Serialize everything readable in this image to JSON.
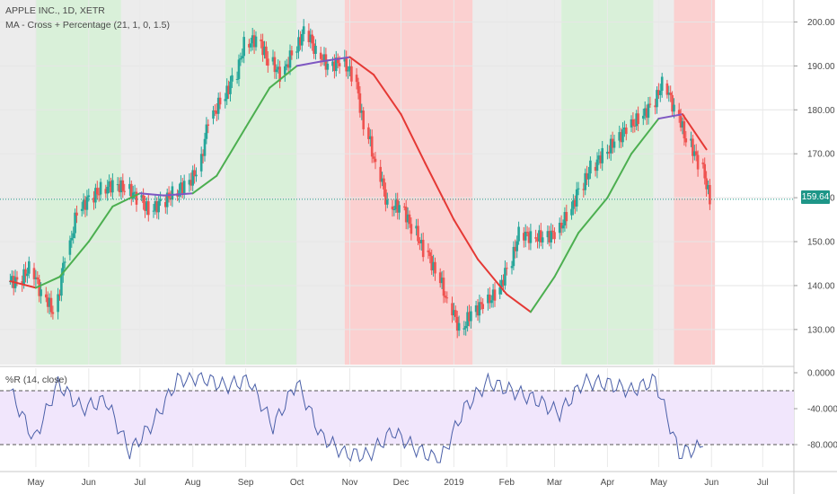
{
  "header": {
    "symbol": "APPLE INC., 1D, XETR",
    "indicator": "MA - Cross + Percentage (21, 1, 0, 1.5)",
    "oscillator": "%R (14, close)"
  },
  "last_price_label": "159.64",
  "colors": {
    "up_candle": "#26a69a",
    "down_candle": "#ef5350",
    "ma_up": "#4caf50",
    "ma_down": "#e53935",
    "ma_flat": "#7e57c2",
    "zone_green": "#d9f0d9",
    "zone_red": "#fbd0d0",
    "zone_gray": "#ececec",
    "band": "#f1e6fc",
    "wr_line": "#4a5fa8",
    "price_line": "#1e9688"
  },
  "chart_data": [
    {
      "type": "line",
      "title": "APPLE INC., 1D, XETR",
      "ylim": [
        122,
        205
      ],
      "y_ticks": [
        "130.00",
        "140.00",
        "150.00",
        "160.00",
        "170.00",
        "180.00",
        "190.00",
        "200.00"
      ],
      "x_ticks": [
        "May",
        "Jun",
        "Jul",
        "Aug",
        "Sep",
        "Oct",
        "Nov",
        "Dec",
        "2019",
        "Feb",
        "Mar",
        "Apr",
        "May",
        "Jun",
        "Jul"
      ],
      "last_price": 159.64,
      "series": [
        {
          "kind": "price",
          "x": [
            "2018-04-16",
            "2018-04-23",
            "2018-04-30",
            "2018-05-07",
            "2018-05-14",
            "2018-05-21",
            "2018-05-28",
            "2018-06-04",
            "2018-06-11",
            "2018-06-18",
            "2018-06-25",
            "2018-07-02",
            "2018-07-09",
            "2018-07-16",
            "2018-07-23",
            "2018-07-30",
            "2018-08-06",
            "2018-08-13",
            "2018-08-20",
            "2018-08-27",
            "2018-09-03",
            "2018-09-10",
            "2018-09-17",
            "2018-09-24",
            "2018-10-01",
            "2018-10-08",
            "2018-10-15",
            "2018-10-22",
            "2018-10-29",
            "2018-11-05",
            "2018-11-12",
            "2018-11-19",
            "2018-11-26",
            "2018-12-03",
            "2018-12-10",
            "2018-12-17",
            "2018-12-24",
            "2018-12-31",
            "2019-01-07",
            "2019-01-14",
            "2019-01-21",
            "2019-01-28",
            "2019-02-04",
            "2019-02-11",
            "2019-02-18",
            "2019-02-25",
            "2019-03-04",
            "2019-03-11",
            "2019-03-18",
            "2019-03-25",
            "2019-04-01",
            "2019-04-08",
            "2019-04-15",
            "2019-04-22",
            "2019-04-29",
            "2019-05-06",
            "2019-05-13",
            "2019-05-20",
            "2019-05-27"
          ],
          "values": [
            141,
            144,
            138,
            134,
            147,
            157,
            160,
            162,
            163,
            162,
            160,
            157,
            159,
            161,
            163,
            166,
            178,
            182,
            187,
            195,
            196,
            191,
            188,
            193,
            198,
            193,
            190,
            191,
            188,
            176,
            167,
            158,
            158,
            153,
            148,
            143,
            136,
            130,
            134,
            136,
            138,
            144,
            152,
            151,
            151,
            152,
            156,
            162,
            167,
            170,
            173,
            176,
            178,
            181,
            186,
            180,
            173,
            168,
            159.6
          ]
        },
        {
          "kind": "moving-average-21",
          "x": [
            "2018-04-16",
            "2018-05-01",
            "2018-05-15",
            "2018-06-01",
            "2018-06-15",
            "2018-07-01",
            "2018-07-15",
            "2018-08-01",
            "2018-08-15",
            "2018-09-01",
            "2018-09-15",
            "2018-10-01",
            "2018-10-15",
            "2018-11-01",
            "2018-11-15",
            "2018-12-01",
            "2018-12-15",
            "2019-01-01",
            "2019-01-15",
            "2019-02-01",
            "2019-02-15",
            "2019-03-01",
            "2019-03-15",
            "2019-04-01",
            "2019-04-15",
            "2019-05-01",
            "2019-05-15",
            "2019-05-29"
          ],
          "values": [
            141,
            139.5,
            142,
            150,
            158,
            161,
            160.5,
            161,
            165,
            176,
            185,
            190,
            191,
            192,
            188,
            179,
            168,
            155,
            146,
            138,
            134,
            142,
            152,
            160,
            170,
            178,
            179,
            171
          ]
        }
      ]
    },
    {
      "type": "line",
      "title": "%R (14, close)",
      "ylim": [
        -105,
        5
      ],
      "y_ticks": [
        "0.0000",
        "-40.0000",
        "-80.0000"
      ],
      "bands": [
        -20,
        -80
      ],
      "series": [
        {
          "kind": "williams-r",
          "x": [
            "2018-04-16",
            "2018-04-30",
            "2018-05-14",
            "2018-05-28",
            "2018-06-11",
            "2018-06-25",
            "2018-07-09",
            "2018-07-23",
            "2018-08-06",
            "2018-08-20",
            "2018-09-03",
            "2018-09-17",
            "2018-10-01",
            "2018-10-15",
            "2018-10-29",
            "2018-11-12",
            "2018-11-26",
            "2018-12-10",
            "2018-12-24",
            "2019-01-07",
            "2019-01-21",
            "2019-02-04",
            "2019-02-18",
            "2019-03-04",
            "2019-03-18",
            "2019-04-01",
            "2019-04-15",
            "2019-04-29",
            "2019-05-13",
            "2019-05-27"
          ],
          "values": [
            -20,
            -75,
            -12,
            -40,
            -30,
            -88,
            -55,
            -8,
            -5,
            -15,
            -8,
            -60,
            -10,
            -70,
            -90,
            -92,
            -65,
            -85,
            -98,
            -40,
            -10,
            -20,
            -30,
            -45,
            -10,
            -12,
            -20,
            -8,
            -90,
            -82
          ]
        }
      ]
    }
  ]
}
